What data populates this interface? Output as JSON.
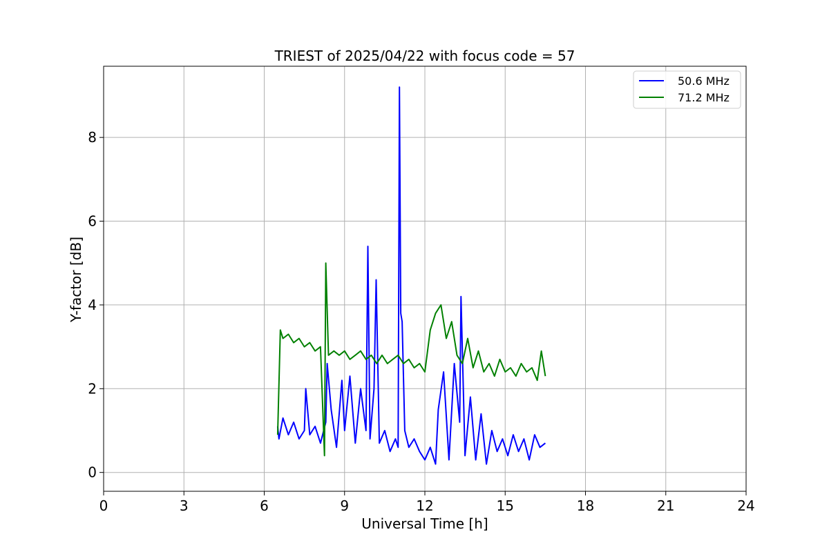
{
  "chart_data": {
    "type": "line",
    "title": "TRIEST of 2025/04/22 with focus code = 57",
    "xlabel": "Universal Time [h]",
    "ylabel": "Y-factor [dB]",
    "xlim": [
      0,
      24
    ],
    "ylim": [
      -0.45,
      9.7
    ],
    "xticks": [
      0,
      3,
      6,
      9,
      12,
      15,
      18,
      21,
      24
    ],
    "yticks": [
      0,
      2,
      4,
      6,
      8
    ],
    "grid": true,
    "legend_position": "top-right",
    "series": [
      {
        "name": "50.6 MHz",
        "color": "#0000ff",
        "x": [
          6.5,
          6.55,
          6.7,
          6.9,
          7.1,
          7.3,
          7.5,
          7.55,
          7.7,
          7.9,
          8.1,
          8.3,
          8.35,
          8.5,
          8.7,
          8.9,
          9.0,
          9.2,
          9.4,
          9.6,
          9.8,
          9.87,
          9.95,
          10.1,
          10.18,
          10.3,
          10.5,
          10.7,
          10.9,
          11.0,
          11.05,
          11.1,
          11.15,
          11.25,
          11.4,
          11.6,
          11.8,
          12.0,
          12.2,
          12.4,
          12.5,
          12.7,
          12.9,
          13.1,
          13.3,
          13.35,
          13.5,
          13.7,
          13.9,
          14.1,
          14.3,
          14.5,
          14.7,
          14.9,
          15.1,
          15.3,
          15.5,
          15.7,
          15.9,
          16.1,
          16.3,
          16.5
        ],
        "y": [
          1.1,
          0.8,
          1.3,
          0.9,
          1.2,
          0.8,
          1.0,
          2.0,
          0.9,
          1.1,
          0.7,
          1.2,
          2.6,
          1.5,
          0.6,
          2.2,
          1.0,
          2.3,
          0.7,
          2.0,
          1.0,
          5.4,
          0.8,
          2.0,
          4.6,
          0.7,
          1.0,
          0.5,
          0.8,
          0.6,
          9.2,
          3.8,
          3.6,
          1.0,
          0.6,
          0.8,
          0.5,
          0.3,
          0.6,
          0.2,
          1.5,
          2.4,
          0.3,
          2.6,
          1.2,
          4.2,
          0.4,
          1.8,
          0.3,
          1.4,
          0.2,
          1.0,
          0.5,
          0.8,
          0.4,
          0.9,
          0.5,
          0.8,
          0.3,
          0.9,
          0.6,
          0.7
        ]
      },
      {
        "name": "71.2 MHz",
        "color": "#008000",
        "x": [
          6.5,
          6.6,
          6.7,
          6.9,
          7.1,
          7.3,
          7.5,
          7.7,
          7.9,
          8.1,
          8.25,
          8.3,
          8.4,
          8.6,
          8.8,
          9.0,
          9.2,
          9.4,
          9.6,
          9.8,
          10.0,
          10.2,
          10.4,
          10.6,
          10.8,
          11.0,
          11.2,
          11.4,
          11.6,
          11.8,
          12.0,
          12.2,
          12.4,
          12.6,
          12.8,
          13.0,
          13.2,
          13.4,
          13.6,
          13.8,
          14.0,
          14.2,
          14.4,
          14.6,
          14.8,
          15.0,
          15.2,
          15.4,
          15.6,
          15.8,
          16.0,
          16.2,
          16.35,
          16.5
        ],
        "y": [
          0.9,
          3.4,
          3.2,
          3.3,
          3.1,
          3.2,
          3.0,
          3.1,
          2.9,
          3.0,
          0.4,
          5.0,
          2.8,
          2.9,
          2.8,
          2.9,
          2.7,
          2.8,
          2.9,
          2.7,
          2.8,
          2.6,
          2.8,
          2.6,
          2.7,
          2.8,
          2.6,
          2.7,
          2.5,
          2.6,
          2.4,
          3.4,
          3.8,
          4.0,
          3.2,
          3.6,
          2.8,
          2.6,
          3.2,
          2.5,
          2.9,
          2.4,
          2.6,
          2.3,
          2.7,
          2.4,
          2.5,
          2.3,
          2.6,
          2.4,
          2.5,
          2.2,
          2.9,
          2.3
        ]
      }
    ]
  }
}
